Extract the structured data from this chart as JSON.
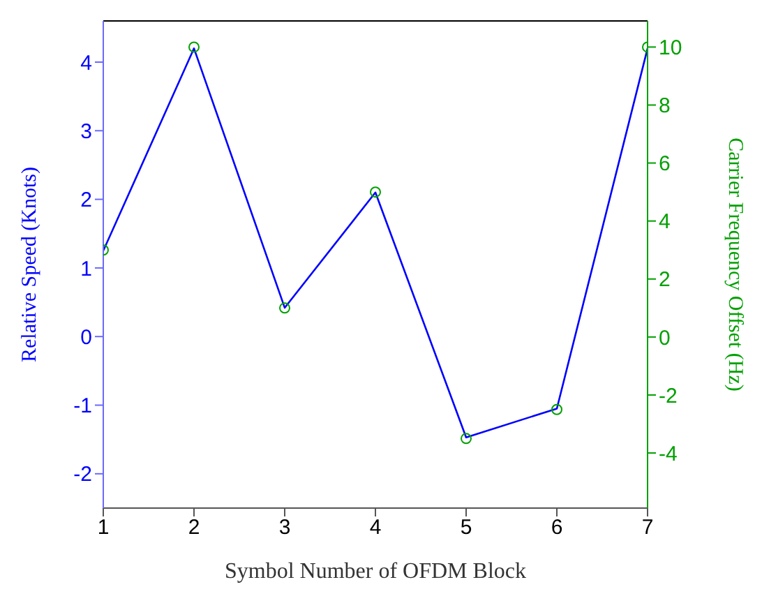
{
  "chart_data": {
    "type": "line",
    "xlabel": "Symbol Number of OFDM Block",
    "ylabel": "Relative Speed (Knots)",
    "y2label": "Carrier Frequency Offset (Hz)",
    "x": [
      1,
      2,
      3,
      4,
      5,
      6,
      7
    ],
    "xlim": [
      1,
      7
    ],
    "xticks": [
      1,
      2,
      3,
      4,
      5,
      6,
      7
    ],
    "ylim": [
      -2.5,
      4.6
    ],
    "yticks": [
      -2,
      -1,
      0,
      1,
      2,
      3,
      4
    ],
    "y2lim": [
      -5.9,
      10.9
    ],
    "y2ticks": [
      -4,
      -2,
      0,
      2,
      4,
      6,
      8,
      10
    ],
    "grid": false,
    "legend": false,
    "series": [
      {
        "color": "#0000ff",
        "marker": "none",
        "values": [
          1.25,
          4.2,
          0.42,
          2.1,
          -1.47,
          -1.05,
          4.2
        ]
      },
      {
        "type": "scatter",
        "axis": "y2",
        "color": "#00a000",
        "marker": "circle",
        "values": [
          3,
          10,
          1,
          5,
          -3.5,
          -2.5,
          10
        ]
      }
    ]
  }
}
